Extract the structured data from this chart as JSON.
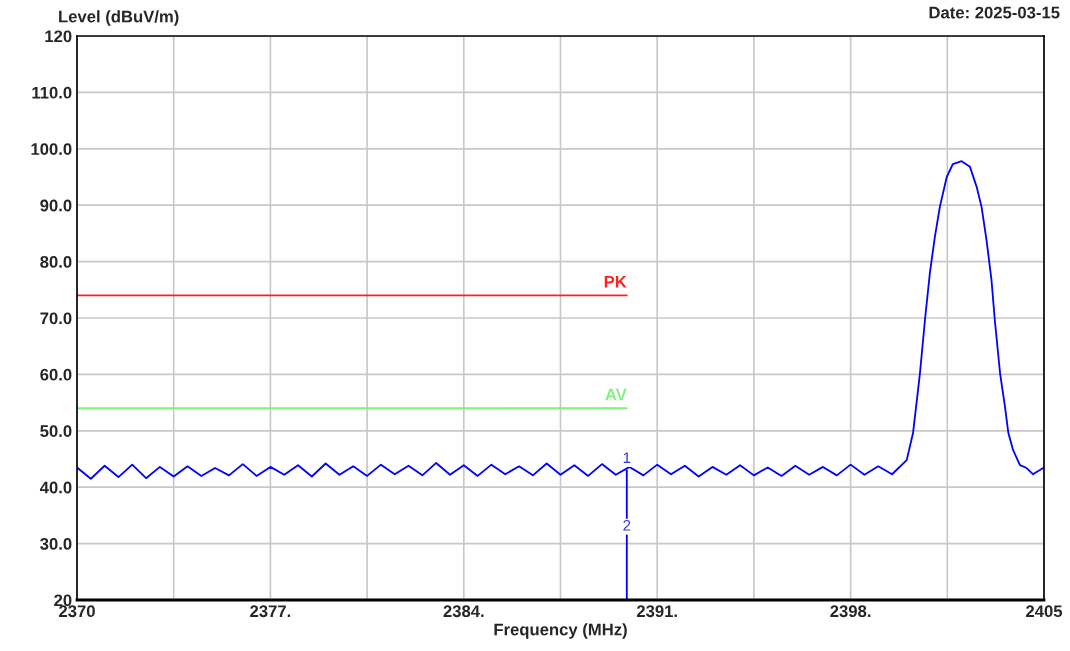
{
  "chart_data": {
    "type": "line",
    "title": "Date: 2025-03-15",
    "xlabel": "Frequency (MHz)",
    "ylabel": "Level (dBuV/m)",
    "xlim": [
      2370,
      2405
    ],
    "ylim": [
      20,
      120
    ],
    "xticks": [
      2370,
      {
        "value": 2373.5,
        "label": null
      },
      {
        "value": 2377,
        "label": "2377."
      },
      {
        "value": 2380.5,
        "label": null
      },
      {
        "value": 2384,
        "label": "2384."
      },
      {
        "value": 2387.5,
        "label": null
      },
      {
        "value": 2391,
        "label": "2391."
      },
      {
        "value": 2394.5,
        "label": null
      },
      {
        "value": 2398,
        "label": "2398."
      },
      {
        "value": 2401.5,
        "label": null
      },
      2405
    ],
    "yticks": [
      20,
      {
        "value": 30,
        "label": "30.0"
      },
      {
        "value": 40,
        "label": "40.0"
      },
      {
        "value": 50,
        "label": "50.0"
      },
      {
        "value": 60,
        "label": "60.0"
      },
      {
        "value": 70,
        "label": "70.0"
      },
      {
        "value": 80,
        "label": "80.0"
      },
      {
        "value": 90,
        "label": "90.0"
      },
      {
        "value": 100,
        "label": "100.0"
      },
      {
        "value": 110,
        "label": "110.0"
      },
      120
    ],
    "grid": true,
    "legend": false,
    "series": [
      {
        "name": "PK",
        "color": "#ff2020",
        "x": [
          2370,
          2389.9
        ],
        "values": [
          74,
          74
        ]
      },
      {
        "name": "AV",
        "color": "#80f080",
        "x": [
          2370,
          2389.9
        ],
        "values": [
          54,
          54
        ]
      },
      {
        "color": "#0000ff",
        "x": [
          2370,
          2370.5,
          2371,
          2371.5,
          2372,
          2372.5,
          2373,
          2373.5,
          2374,
          2374.5,
          2375,
          2375.5,
          2376,
          2376.5,
          2377,
          2377.5,
          2378,
          2378.5,
          2379,
          2379.5,
          2380,
          2380.5,
          2381,
          2381.5,
          2382,
          2382.5,
          2383,
          2383.5,
          2384,
          2384.5,
          2385,
          2385.5,
          2386,
          2386.5,
          2387,
          2387.5,
          2388,
          2388.5,
          2389,
          2389.5,
          2390,
          2390.5,
          2391,
          2391.5,
          2392,
          2392.5,
          2393,
          2393.5,
          2394,
          2394.5,
          2395,
          2395.5,
          2396,
          2396.5,
          2397,
          2397.5,
          2398,
          2398.5,
          2399,
          2399.5,
          2400.03,
          2400.26,
          2400.51,
          2400.69,
          2400.87,
          2401.05,
          2401.23,
          2401.48,
          2401.7,
          2402.02,
          2402.32,
          2402.56,
          2402.74,
          2402.92,
          2403.1,
          2403.22,
          2403.41,
          2403.59,
          2403.71,
          2403.88,
          2404.13,
          2404.37,
          2404.6,
          2405
        ],
        "values": [
          43.5,
          41.5,
          43.8,
          41.8,
          44.0,
          41.6,
          43.6,
          41.9,
          43.7,
          42.0,
          43.4,
          42.1,
          44.1,
          42.0,
          43.6,
          42.2,
          43.9,
          41.9,
          44.2,
          42.2,
          43.7,
          42.0,
          44.0,
          42.3,
          43.8,
          42.1,
          44.3,
          42.2,
          43.9,
          42.0,
          44.0,
          42.3,
          43.7,
          42.1,
          44.2,
          42.2,
          43.9,
          42.0,
          44.1,
          42.2,
          43.6,
          42.1,
          44.0,
          42.3,
          43.8,
          41.9,
          43.6,
          42.2,
          43.9,
          42.1,
          43.5,
          42.0,
          43.8,
          42.2,
          43.6,
          42.1,
          44.0,
          42.2,
          43.7,
          42.3,
          44.8,
          49.6,
          60.2,
          69.6,
          78,
          84.4,
          89.7,
          95,
          97.3,
          97.8,
          96.8,
          93.3,
          89.7,
          83.8,
          76.7,
          69.6,
          60.2,
          54.2,
          49.6,
          46.6,
          43.9,
          43.4,
          42.3,
          43.5
        ]
      },
      {
        "color": "#0000ff",
        "x": [
          2389.9,
          2389.9
        ],
        "values": [
          43,
          20
        ]
      }
    ],
    "annotations": [
      {
        "text": "1",
        "x": 2389.9,
        "y": 43
      },
      {
        "text": "2",
        "x": 2389.9,
        "y": 31
      }
    ]
  }
}
